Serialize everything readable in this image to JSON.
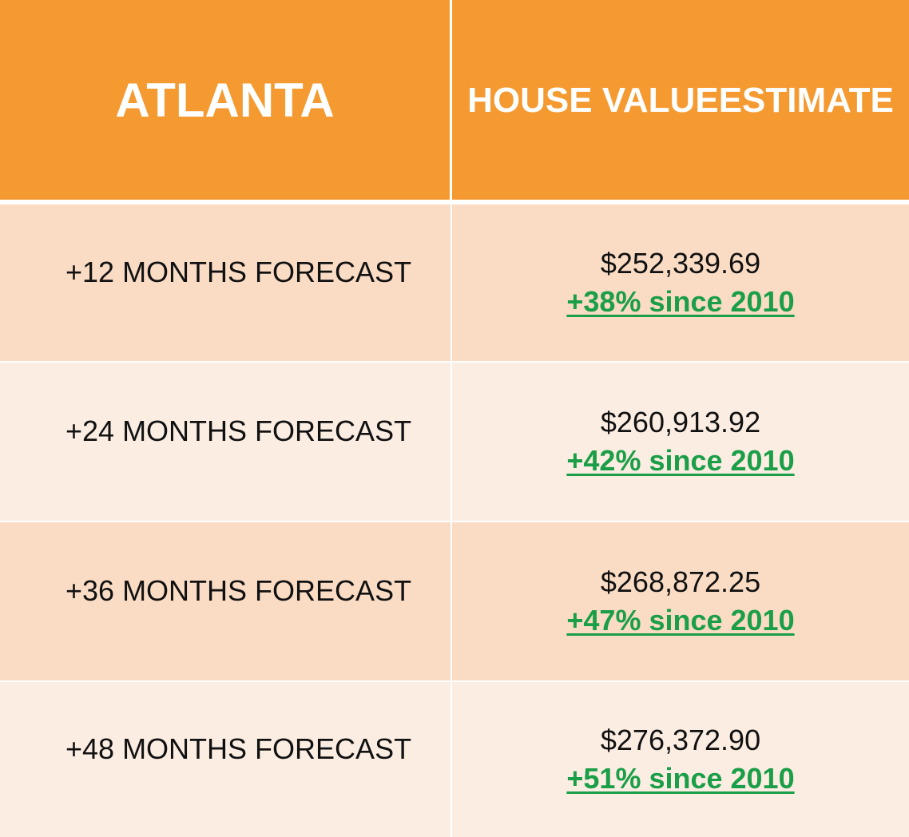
{
  "header": {
    "city": "ATLANTA",
    "value_line1": "HOUSE VALUE",
    "value_line2": "ESTIMATE"
  },
  "rows": [
    {
      "label": "+12 MONTHS FORECAST",
      "amount": "$252,339.69",
      "change": "+38% since 2010"
    },
    {
      "label": "+24 MONTHS FORECAST",
      "amount": "$260,913.92",
      "change": "+42% since 2010"
    },
    {
      "label": "+36 MONTHS FORECAST",
      "amount": "$268,872.25",
      "change": "+47% since 2010"
    },
    {
      "label": "+48 MONTHS FORECAST",
      "amount": "$276,372.90",
      "change": "+51% since 2010"
    }
  ],
  "colors": {
    "header_bg": "#f49a31",
    "row_dark": "#fadcc5",
    "row_light": "#fcede3",
    "change_text": "#1a9e47"
  }
}
